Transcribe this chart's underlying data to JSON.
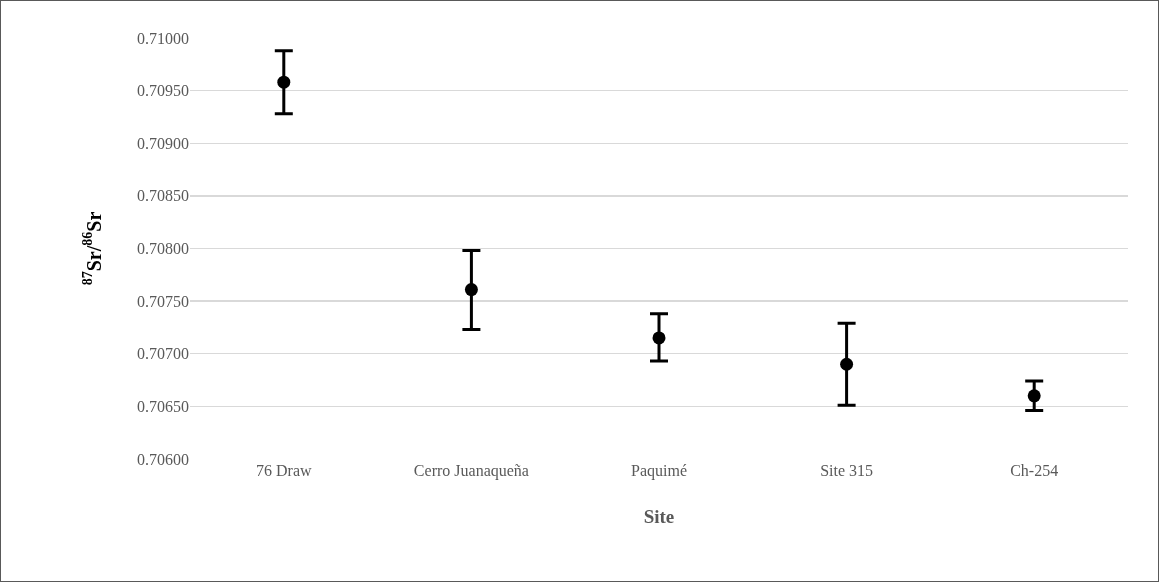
{
  "chart_data": {
    "type": "scatter",
    "xlabel": "Site",
    "ylabel": "$^{87}$Sr/$^{86}$Sr",
    "categories": [
      "76 Draw",
      "Cerro Juanaqueña",
      "Paquimé",
      "Site 315",
      "Ch-254"
    ],
    "values": [
      0.70958,
      0.70761,
      0.70715,
      0.7069,
      0.7066
    ],
    "errors": [
      [
        0.70928,
        0.70988
      ],
      [
        0.70723,
        0.70798
      ],
      [
        0.70693,
        0.70738
      ],
      [
        0.70651,
        0.70729
      ],
      [
        0.70646,
        0.70674
      ]
    ],
    "color": "#000000",
    "marker": "circle",
    "ylim": [
      0.706,
      0.71
    ],
    "yticks": [
      {
        "value": 0.706,
        "label": "0.70600"
      },
      {
        "value": 0.7065,
        "label": "0.70650"
      },
      {
        "value": 0.707,
        "label": "0.70700"
      },
      {
        "value": 0.7075,
        "label": "0.70750"
      },
      {
        "value": 0.708,
        "label": "0.70800"
      },
      {
        "value": 0.7085,
        "label": "0.70850"
      },
      {
        "value": 0.709,
        "label": "0.70900"
      },
      {
        "value": 0.7095,
        "label": "0.70950"
      },
      {
        "value": 0.71,
        "label": "0.71000"
      }
    ],
    "grid": "y"
  }
}
